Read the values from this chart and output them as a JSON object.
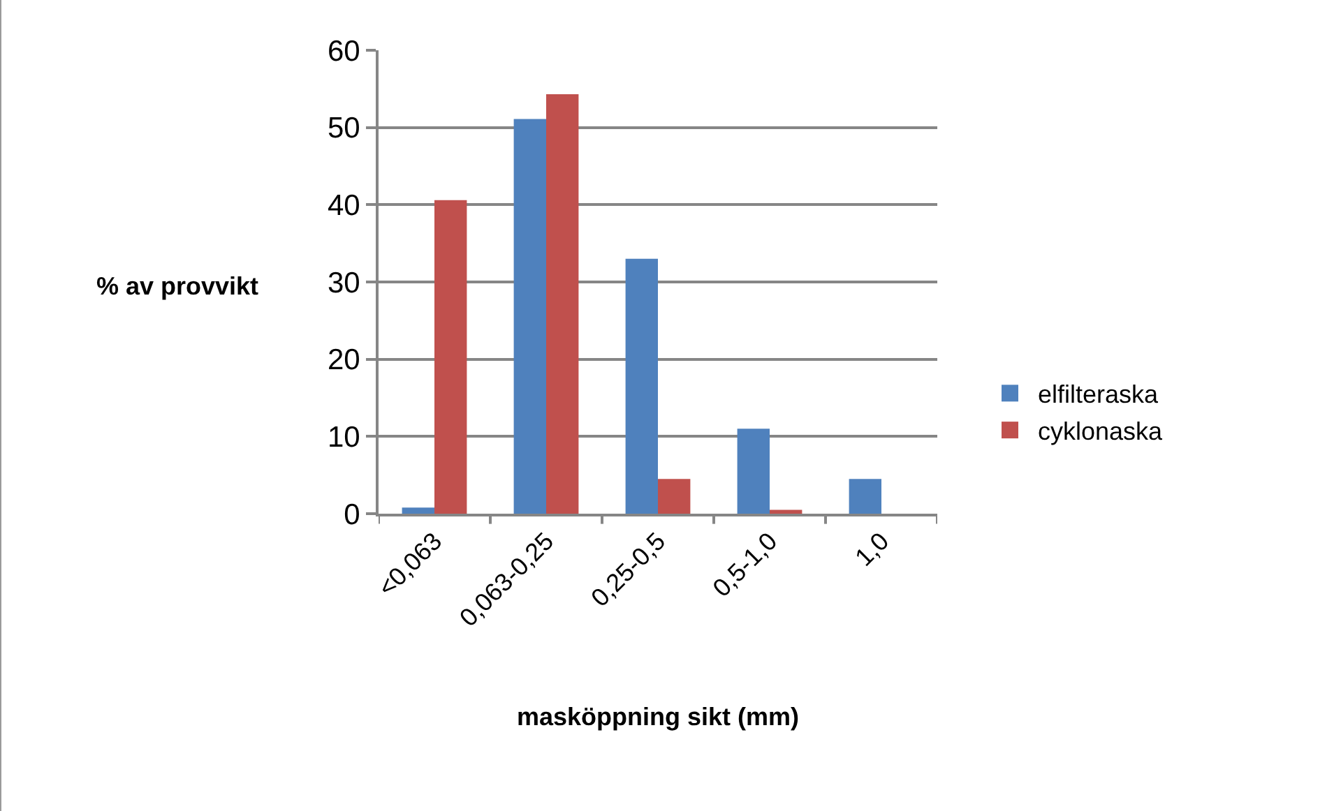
{
  "chart_data": {
    "type": "bar",
    "xlabel": "masköppning sikt (mm)",
    "ylabel": "% av provvikt",
    "categories": [
      "<0,063",
      "0,063-0,25",
      "0,25-0,5",
      "0,5-1,0",
      "1,0"
    ],
    "series": [
      {
        "name": "elfilteraska",
        "color": "#4f81bd",
        "values": [
          0.8,
          51.1,
          33.0,
          11.0,
          4.5
        ]
      },
      {
        "name": "cyklonaska",
        "color": "#c0504d",
        "values": [
          40.6,
          54.3,
          4.5,
          0.5,
          0
        ]
      }
    ],
    "ylim": [
      0,
      60
    ],
    "yticks": [
      0,
      10,
      20,
      30,
      40,
      50,
      60
    ],
    "grid": "y",
    "legend": "right"
  }
}
